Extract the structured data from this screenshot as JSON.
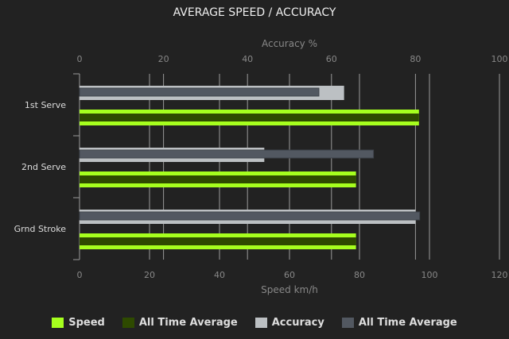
{
  "chart_data": {
    "type": "bar",
    "orientation": "horizontal",
    "title": "AVERAGE SPEED / ACCURACY",
    "categories": [
      "1st Serve",
      "2nd Serve",
      "Grnd Stroke"
    ],
    "top_axis": {
      "label": "Accuracy %",
      "range": [
        0,
        100
      ],
      "ticks": [
        0,
        20,
        40,
        60,
        80,
        100
      ]
    },
    "bottom_axis": {
      "label": "Speed km/h",
      "range": [
        0,
        120
      ],
      "ticks": [
        0,
        20,
        40,
        60,
        80,
        100,
        120
      ]
    },
    "grid": true,
    "legend_position": "bottom",
    "series": [
      {
        "name": "Speed",
        "axis": "bottom",
        "color": "#a6ff1e",
        "values": [
          97,
          79,
          79
        ]
      },
      {
        "name": "All Time Average",
        "axis": "bottom",
        "color": "#2e4a00",
        "values": [
          97,
          79,
          79
        ]
      },
      {
        "name": "Accuracy",
        "axis": "top",
        "color": "#bcc0c3",
        "values": [
          63,
          44,
          80
        ]
      },
      {
        "name": "All Time Average",
        "axis": "top",
        "color": "#525861",
        "values": [
          57,
          70,
          81
        ]
      }
    ]
  }
}
